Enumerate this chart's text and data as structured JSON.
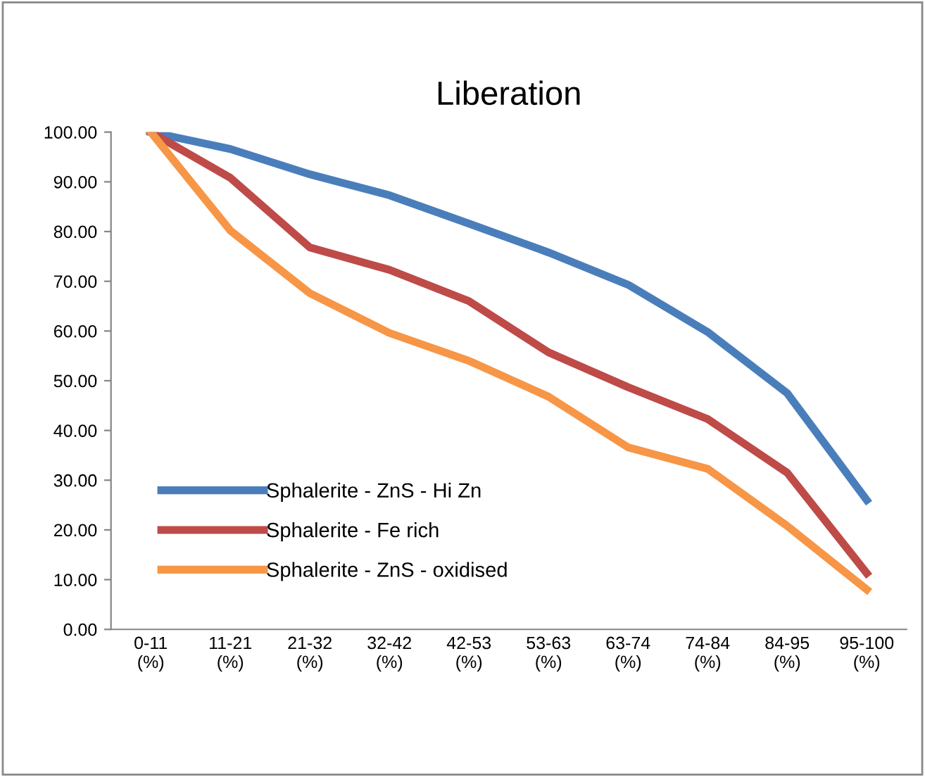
{
  "chart_data": {
    "type": "line",
    "title": "Liberation",
    "categories": [
      "0-11\n(%)",
      "11-21\n(%)",
      "21-32\n(%)",
      "32-42\n(%)",
      "42-53\n(%)",
      "53-63\n(%)",
      "63-74\n(%)",
      "74-84\n(%)",
      "84-95\n(%)",
      "95-100\n(%)"
    ],
    "series": [
      {
        "name": "Sphalerite - ZnS - Hi Zn",
        "color": "#4a7ebb",
        "values": [
          100,
          96.6,
          91.5,
          87.3,
          81.6,
          75.8,
          69.3,
          59.8,
          47.5,
          26.0
        ]
      },
      {
        "name": "Sphalerite - Fe rich",
        "color": "#be4b48",
        "values": [
          100,
          90.8,
          76.8,
          72.3,
          66.0,
          55.7,
          48.7,
          42.3,
          31.5,
          11.3
        ]
      },
      {
        "name": "Sphalerite - ZnS - oxidised",
        "color": "#f79646",
        "values": [
          100,
          80.2,
          67.6,
          59.6,
          54.0,
          46.8,
          36.6,
          32.3,
          20.8,
          8.0
        ]
      }
    ],
    "ylim": [
      0,
      100
    ],
    "yticks": [
      {
        "value": 0,
        "label": "0.00"
      },
      {
        "value": 10,
        "label": "10.00"
      },
      {
        "value": 20,
        "label": "20.00"
      },
      {
        "value": 30,
        "label": "30.00"
      },
      {
        "value": 40,
        "label": "40.00"
      },
      {
        "value": 50,
        "label": "50.00"
      },
      {
        "value": 60,
        "label": "60.00"
      },
      {
        "value": 70,
        "label": "70.00"
      },
      {
        "value": 80,
        "label": "80.00"
      },
      {
        "value": 90,
        "label": "90.00"
      },
      {
        "value": 100,
        "label": "100.00"
      }
    ],
    "grid": false,
    "legend": "bottom left",
    "marker": "none",
    "line_style": "solid"
  }
}
